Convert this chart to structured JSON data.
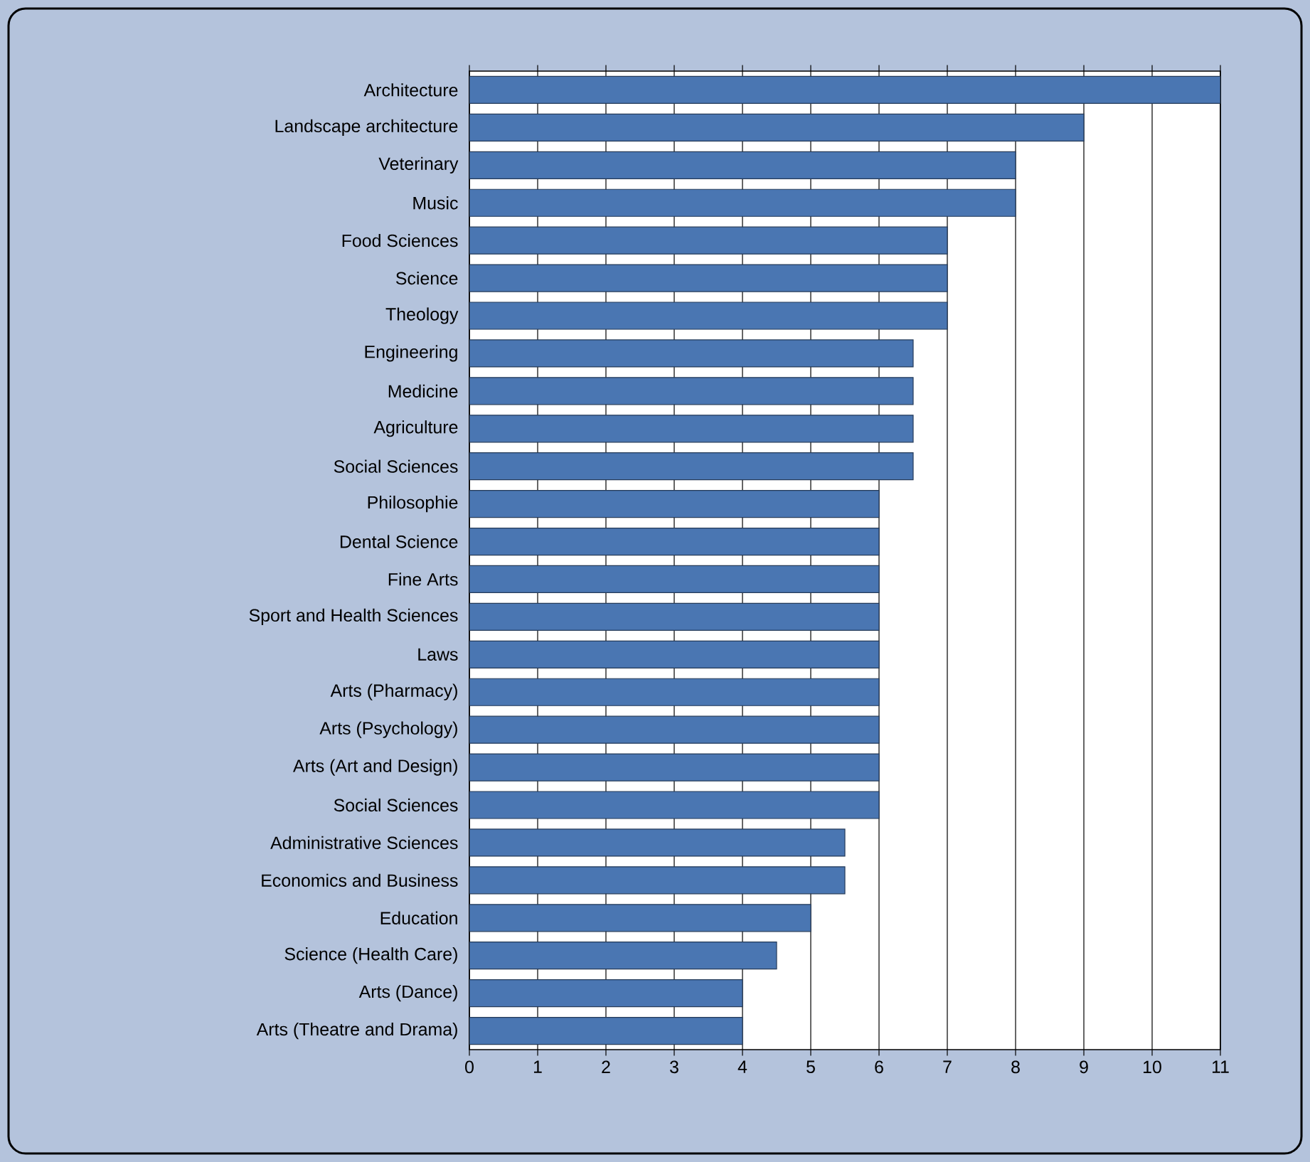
{
  "chart_data": {
    "type": "bar",
    "orientation": "horizontal",
    "color": "#4a76b2",
    "grid": "x",
    "categories": [
      "Architecture",
      "Landscape architecture",
      "Veterinary",
      "Music",
      "Food Sciences",
      "Science",
      "Theology",
      "Engineering",
      "Medicine",
      "Agriculture",
      "Social Sciences",
      "Philosophie",
      "Dental Science",
      "Fine  Arts",
      "Sport and Health Sciences",
      "Laws",
      "Arts (Pharmacy)",
      "Arts (Psychology)",
      "Arts (Art and Design)",
      "Social Sciences",
      "Administrative Sciences",
      "Economics and Business",
      "Education",
      "Science (Health Care)",
      "Arts (Dance)",
      "Arts (Theatre and Drama)"
    ],
    "values": [
      11,
      9,
      8,
      8,
      7,
      7,
      7,
      6.5,
      6.5,
      6.5,
      6.5,
      6,
      6,
      6,
      6,
      6,
      6,
      6,
      6,
      6,
      5.5,
      5.5,
      5,
      4.5,
      4,
      4
    ],
    "xlim": [
      0,
      11
    ],
    "xticks": [
      0,
      1,
      2,
      3,
      4,
      5,
      6,
      7,
      8,
      9,
      10,
      11
    ]
  }
}
